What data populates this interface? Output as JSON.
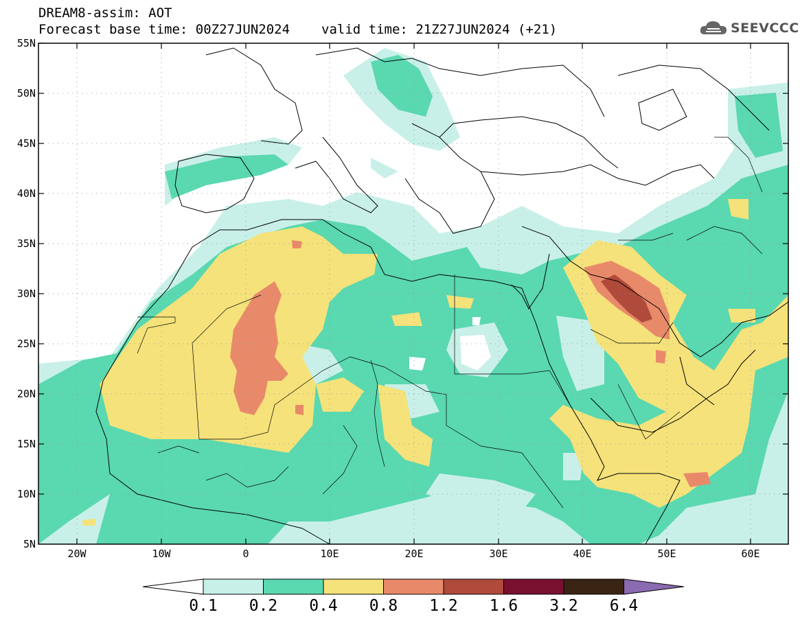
{
  "header": {
    "title_line1": "DREAM8-assim: AOT",
    "base_time": "Forecast base time: 00Z27JUN2024",
    "valid_time": "valid time: 21Z27JUN2024 (+21)"
  },
  "logo": {
    "text": "SEEVCCC",
    "icon": "cloud-icon"
  },
  "map": {
    "lat_ticks": [
      "55N",
      "50N",
      "45N",
      "40N",
      "35N",
      "30N",
      "25N",
      "20N",
      "15N",
      "10N",
      "5N"
    ],
    "lon_ticks": [
      "20W",
      "10W",
      "0",
      "10E",
      "20E",
      "30E",
      "40E",
      "50E",
      "60E"
    ]
  },
  "colorbar": {
    "labels": [
      "0.1",
      "0.2",
      "0.4",
      "0.8",
      "1.2",
      "1.6",
      "3.2",
      "6.4"
    ],
    "colors": {
      "0.1-0.2": "#c8f0e8",
      "0.2-0.4": "#5ad8b0",
      "0.4-0.8": "#f5e27a",
      "0.8-1.2": "#e88a6a",
      "1.2-1.6": "#b04a3a",
      "1.6-3.2": "#7a1030",
      "3.2-6.4": "#3a2414",
      "above-6.4": "#8a6ab0"
    }
  }
}
